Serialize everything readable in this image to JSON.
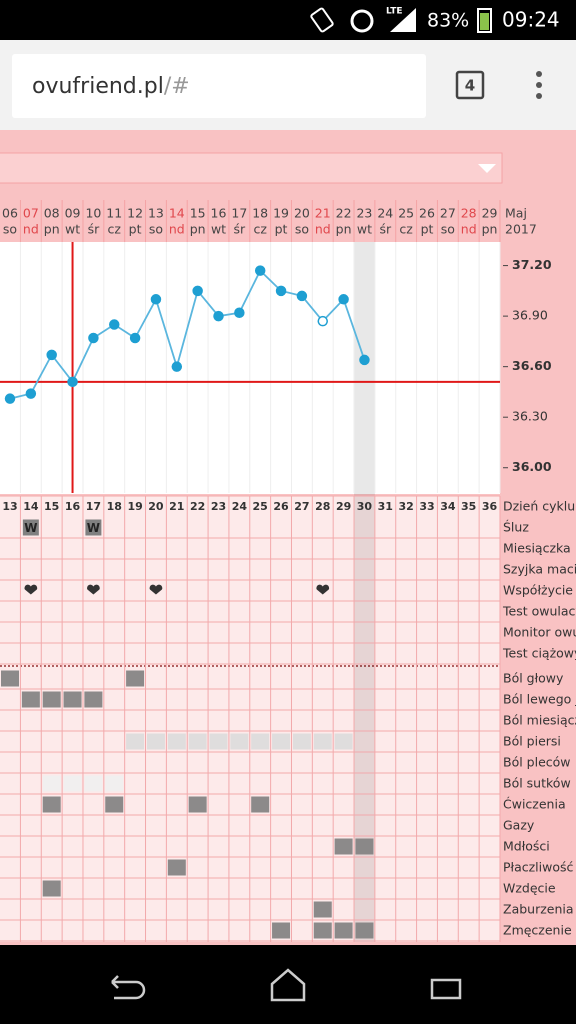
{
  "status_bar": {
    "network": "LTE",
    "battery": "83%",
    "time": "09:24"
  },
  "browser": {
    "url_host": "ovufriend.pl",
    "url_path": "/#",
    "tab_count": "4"
  },
  "chart_data": {
    "type": "line",
    "month": "Maj",
    "year": "2017",
    "x": [
      "06",
      "07",
      "08",
      "09",
      "10",
      "11",
      "12",
      "13",
      "14",
      "15",
      "16",
      "17",
      "18",
      "19",
      "20",
      "21",
      "22",
      "23",
      "24",
      "25",
      "26",
      "27",
      "28",
      "29"
    ],
    "weekdays": [
      "so",
      "nd",
      "pn",
      "wt",
      "śr",
      "cz",
      "pt",
      "so",
      "nd",
      "pn",
      "wt",
      "śr",
      "cz",
      "pt",
      "so",
      "nd",
      "pn",
      "wt",
      "śr",
      "cz",
      "pt",
      "so",
      "nd",
      "pn"
    ],
    "red_days": [
      "07",
      "14",
      "21",
      "28"
    ],
    "red_color": "#e0474c",
    "values": [
      36.41,
      36.44,
      36.67,
      36.51,
      36.77,
      36.85,
      36.77,
      37.0,
      36.6,
      37.05,
      36.9,
      36.92,
      37.17,
      37.05,
      37.02,
      36.87,
      37.0,
      36.64,
      null,
      null,
      null,
      null,
      null,
      null
    ],
    "open_points": [
      "21"
    ],
    "color": "#1e9fd2",
    "line_color": "#5ab6de",
    "ylim": [
      35.85,
      37.34
    ],
    "yticks": [
      {
        "value": 36.0,
        "label": "36.00",
        "bold": true
      },
      {
        "value": 36.3,
        "label": "36.30"
      },
      {
        "value": 36.6,
        "label": "36.60",
        "bold": true
      },
      {
        "value": 36.9,
        "label": "36.90"
      },
      {
        "value": 37.2,
        "label": "37.20",
        "bold": true
      }
    ],
    "coverline": 36.51,
    "marker_day": "09",
    "highlight_day": "23"
  },
  "table": {
    "header_label": "Dzień cyklu",
    "cycle_days": [
      13,
      14,
      15,
      16,
      17,
      18,
      19,
      20,
      21,
      22,
      23,
      24,
      25,
      26,
      27,
      28,
      29,
      30,
      31,
      32,
      33,
      34,
      35,
      36
    ],
    "rows": [
      {
        "label": "Śluz",
        "marks": [
          {
            "day": 14,
            "text": "W"
          },
          {
            "day": 17,
            "text": "W"
          }
        ]
      },
      {
        "label": "Miesiączka",
        "marks": []
      },
      {
        "label": "Szyjka macic",
        "marks": []
      },
      {
        "label": "Współżycie",
        "marks": [
          {
            "day": 14
          },
          {
            "day": 17
          },
          {
            "day": 20
          },
          {
            "day": 28
          }
        ]
      },
      {
        "label": "Test owulacy",
        "marks": []
      },
      {
        "label": "Monitor owul",
        "marks": []
      },
      {
        "label": "Test ciążowy",
        "marks": []
      }
    ],
    "symptom_rows": [
      {
        "label": "Ból głowy",
        "marks": [
          {
            "day": 13
          },
          {
            "day": 19
          }
        ]
      },
      {
        "label": "Ból lewego ja",
        "marks": [
          {
            "day": 14
          },
          {
            "day": 15
          },
          {
            "day": 16
          },
          {
            "day": 17
          }
        ]
      },
      {
        "label": "Ból miesiącz",
        "marks": []
      },
      {
        "label": "Ból piersi",
        "shade": "#dcdcdc",
        "marks": [
          {
            "day": 19
          },
          {
            "day": 20
          },
          {
            "day": 21
          },
          {
            "day": 22
          },
          {
            "day": 23
          },
          {
            "day": 24
          },
          {
            "day": 25
          },
          {
            "day": 26
          },
          {
            "day": 27
          },
          {
            "day": 28
          },
          {
            "day": 29
          }
        ]
      },
      {
        "label": "Ból pleców",
        "marks": []
      },
      {
        "label": "Ból sutków",
        "shade": "#efefef",
        "marks": [
          {
            "day": 15
          },
          {
            "day": 16
          },
          {
            "day": 17
          },
          {
            "day": 18
          }
        ]
      },
      {
        "label": "Ćwiczenia",
        "marks": [
          {
            "day": 15
          },
          {
            "day": 18
          },
          {
            "day": 22
          },
          {
            "day": 25
          }
        ]
      },
      {
        "label": "Gazy",
        "marks": []
      },
      {
        "label": "Mdłości",
        "marks": [
          {
            "day": 29
          },
          {
            "day": 30
          }
        ]
      },
      {
        "label": "Płaczliwość",
        "marks": [
          {
            "day": 21
          }
        ]
      },
      {
        "label": "Wzdęcie",
        "marks": [
          {
            "day": 15
          }
        ]
      },
      {
        "label": "Zaburzenia s",
        "marks": [
          {
            "day": 28
          }
        ]
      },
      {
        "label": "Zmęczenie",
        "marks": [
          {
            "day": 26
          },
          {
            "day": 28
          },
          {
            "day": 29
          },
          {
            "day": 30
          }
        ]
      }
    ],
    "mark_color": "#808080"
  }
}
